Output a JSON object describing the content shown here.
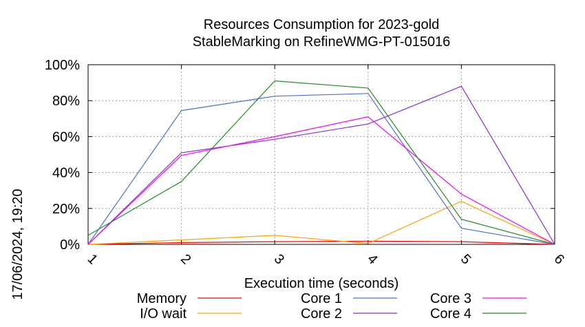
{
  "chart_data": {
    "type": "line",
    "title": [
      "Resources Consumption for 2023-gold",
      "StableMarking on RefineWMG-PT-015016"
    ],
    "xlabel": "Execution time (seconds)",
    "ylabel": "",
    "side_label": "17/06/2024, 19:20",
    "x": [
      1,
      2,
      3,
      4,
      5,
      6
    ],
    "xlim": [
      1,
      6
    ],
    "ylim": [
      0,
      100
    ],
    "y_ticks": [
      "0%",
      "20%",
      "40%",
      "60%",
      "80%",
      "100%"
    ],
    "x_ticks": [
      "1",
      "2",
      "3",
      "4",
      "5",
      "6"
    ],
    "grid": true,
    "legend_position": "bottom",
    "series": [
      {
        "name": "Memory",
        "color": "#ff0000",
        "values": [
          0,
          1,
          1.5,
          1.8,
          1.5,
          0
        ]
      },
      {
        "name": "I/O wait",
        "color": "#ffa500",
        "values": [
          0,
          2.5,
          5,
          0.5,
          24,
          0
        ]
      },
      {
        "name": "Core 1",
        "color": "#4a6fd8",
        "values": [
          0,
          74.5,
          82.5,
          84,
          9,
          0
        ]
      },
      {
        "name": "Core 2",
        "color": "#8a2be2",
        "values": [
          0,
          51,
          58.5,
          67,
          88,
          0
        ]
      },
      {
        "name": "Core 3",
        "color": "#ff00ff",
        "values": [
          0,
          49.5,
          60,
          71,
          28,
          0
        ]
      },
      {
        "name": "Core 4",
        "color": "#228b22",
        "values": [
          5,
          35,
          91,
          87,
          14,
          0
        ]
      }
    ]
  }
}
